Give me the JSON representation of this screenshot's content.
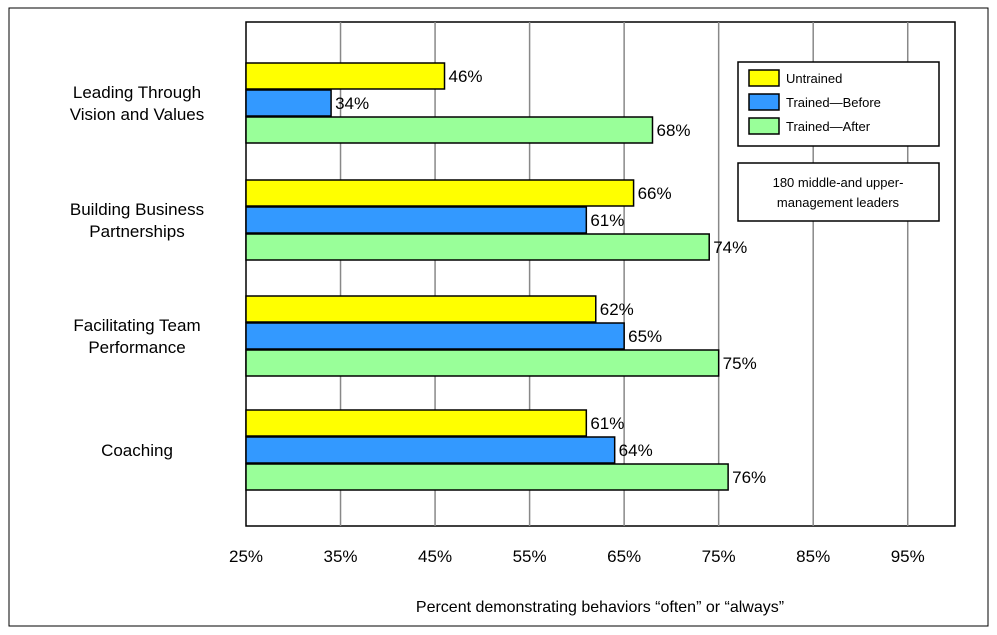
{
  "chart_data": {
    "type": "bar",
    "orientation": "horizontal",
    "categories": [
      [
        "Leading Through",
        "Vision and Values"
      ],
      [
        "Building Business",
        "Partnerships"
      ],
      [
        "Facilitating Team",
        "Performance"
      ],
      [
        "Coaching"
      ]
    ],
    "series": [
      {
        "name": "Untrained",
        "color": "#ffff00",
        "values": [
          46,
          66,
          62,
          61
        ],
        "labels": [
          "46%",
          "66%",
          "62%",
          "61%"
        ]
      },
      {
        "name": "Trained—Before",
        "color": "#3399ff",
        "values": [
          34,
          61,
          65,
          64
        ],
        "labels": [
          "34%",
          "61%",
          "65%",
          "64%"
        ]
      },
      {
        "name": "Trained—After",
        "color": "#99ff99",
        "values": [
          68,
          74,
          75,
          76
        ],
        "labels": [
          "68%",
          "74%",
          "75%",
          "76%"
        ]
      }
    ],
    "xlabel": "Percent demonstrating behaviors “often” or “always”",
    "xlim": [
      25,
      100
    ],
    "xticks": [
      25,
      35,
      45,
      55,
      65,
      75,
      85,
      95
    ],
    "xtick_labels": [
      "25%",
      "35%",
      "45%",
      "55%",
      "65%",
      "75%",
      "85%",
      "95%"
    ],
    "grid": true,
    "legend_position": "top-right",
    "annotation": [
      "180 middle-and upper-",
      "management leaders"
    ]
  }
}
